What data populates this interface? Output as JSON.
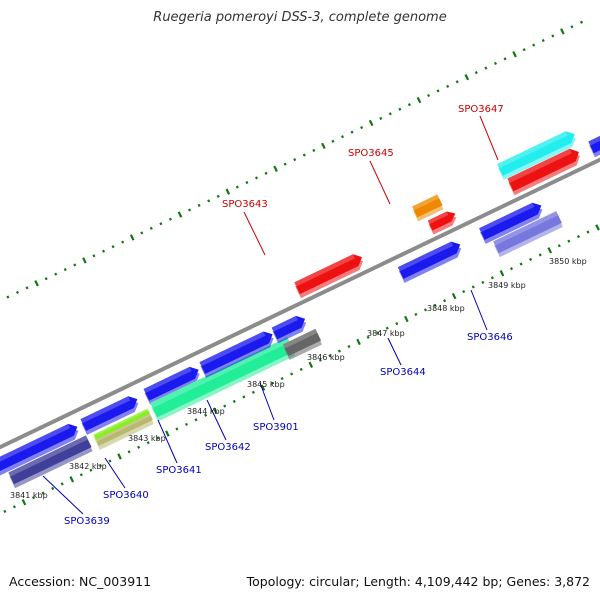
{
  "title": "Ruegeria pomeroyi DSS-3, complete genome",
  "footer": {
    "accession": "Accession: NC_003911",
    "info": "Topology: circular; Length: 4,109,442 bp; Genes: 3,872"
  },
  "colors": {
    "backbone": "#8c8c8c",
    "tick": "#117711",
    "label_top": "#cc0000",
    "label_bottom": "#0000bb"
  },
  "ticks": [
    "3841 kbp",
    "3842 kbp",
    "3843 kbp",
    "3844 kbp",
    "3845 kbp",
    "3846 kbp",
    "3847 kbp",
    "3848 kbp",
    "3849 kbp",
    "3850 kbp"
  ],
  "labels_top": [
    "SPO3643",
    "SPO3645",
    "SPO3647"
  ],
  "labels_bottom": [
    "SPO3639",
    "SPO3640",
    "SPO3641",
    "SPO3642",
    "SPO3901",
    "SPO3644",
    "SPO3646"
  ],
  "genes": [
    {
      "name": "SPO3639",
      "color": "#1a1aee"
    },
    {
      "name": "SPO3640",
      "color": "#1a1aee"
    },
    {
      "name": "SPO3641",
      "color": "#1a1aee"
    },
    {
      "name": "SPO3642",
      "color": "#1a1aee"
    },
    {
      "name": "SPO3901",
      "color": "#1a1aee"
    },
    {
      "name": "SPO3643",
      "color": "#ee1111"
    },
    {
      "name": "SPO3644",
      "color": "#1a1aee"
    },
    {
      "name": "SPO3645",
      "color": "#ee1111"
    },
    {
      "name": "SPO3646",
      "color": "#1a1aee"
    },
    {
      "name": "SPO3647",
      "color": "#ee1111"
    },
    {
      "name": "feature-1",
      "color": "#40409a"
    },
    {
      "name": "feature-2",
      "color": "#b8b870"
    },
    {
      "name": "feature-3",
      "color": "#88ee22"
    },
    {
      "name": "feature-4",
      "color": "#22ee99"
    },
    {
      "name": "feature-5",
      "color": "#666666"
    },
    {
      "name": "feature-6",
      "color": "#ee8800"
    },
    {
      "name": "feature-7",
      "color": "#7777dd"
    },
    {
      "name": "feature-8",
      "color": "#22eeee"
    }
  ]
}
